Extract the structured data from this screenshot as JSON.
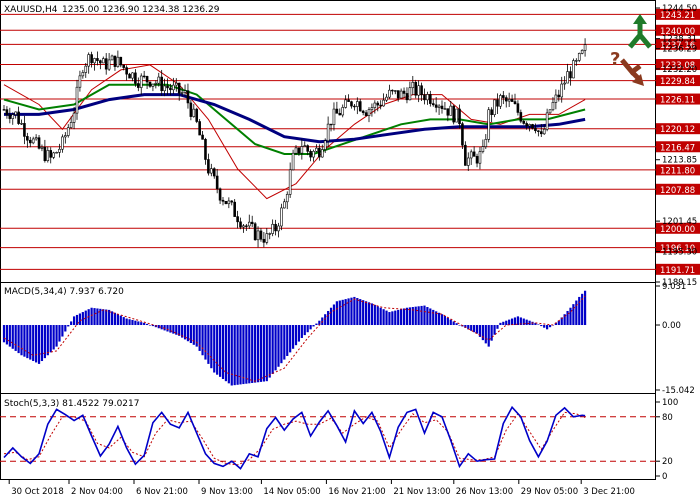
{
  "header": {
    "title": "XAUUSD,H4",
    "ohlc": "1235.00 1236.90 1234.38 1236.29"
  },
  "colors": {
    "candle": "#000000",
    "level_line": "#c00000",
    "level_tag_bg": "#c00000",
    "ma_fast": "#c00000",
    "ma_mid": "#008000",
    "ma_slow": "#00007f",
    "macd_bars": "#0000c8",
    "macd_signal": "#c00000",
    "stoch_main": "#0000c8",
    "stoch_signal": "#c00000",
    "stoch_levels": "#c00000",
    "arrow_up": "#1f7a2a",
    "arrow_down": "#8b3a1f",
    "question": "#8b3a1f"
  },
  "icons": [
    "arrow-up-icon",
    "arrow-down-icon",
    "question-mark-icon"
  ],
  "chart_data": [
    {
      "type": "candlestick",
      "panel": "price",
      "ylim": [
        1189.15,
        1244.5
      ],
      "levels": [
        1243.21,
        1240.0,
        1237.16,
        1233.08,
        1229.84,
        1226.11,
        1220.12,
        1216.47,
        1211.8,
        1207.88,
        1200.0,
        1196.1,
        1191.71
      ],
      "level_labels": [
        "1243.21",
        "1240.00",
        "1237.16",
        "1233.08",
        "1229.84",
        "1226.11",
        "1220.12",
        "1216.47",
        "1211.80",
        "1207.88",
        "1200.00",
        "1196.10",
        "1191.71"
      ],
      "axis_labels": [
        {
          "text": "1244.50",
          "value": 1244.5
        },
        {
          "text": "1238.31",
          "value": 1238.31
        },
        {
          "text": "1236.29",
          "value": 1236.29
        },
        {
          "text": "1232.20",
          "value": 1232.2
        },
        {
          "text": "1213.85",
          "value": 1213.85
        },
        {
          "text": "1201.45",
          "value": 1201.45
        },
        {
          "text": "1195.30",
          "value": 1195.3
        },
        {
          "text": "1189.15",
          "value": 1189.15
        }
      ],
      "close_path": [
        [
          0,
          1224
        ],
        [
          4,
          1223
        ],
        [
          8,
          1219
        ],
        [
          12,
          1216
        ],
        [
          16,
          1214
        ],
        [
          20,
          1217
        ],
        [
          24,
          1224
        ],
        [
          27,
          1233
        ],
        [
          30,
          1235
        ],
        [
          34,
          1233
        ],
        [
          38,
          1234
        ],
        [
          42,
          1232
        ],
        [
          46,
          1230
        ],
        [
          50,
          1230
        ],
        [
          54,
          1229
        ],
        [
          58,
          1228
        ],
        [
          62,
          1227
        ],
        [
          66,
          1221
        ],
        [
          70,
          1212
        ],
        [
          74,
          1207
        ],
        [
          78,
          1204
        ],
        [
          82,
          1201
        ],
        [
          86,
          1199
        ],
        [
          90,
          1198
        ],
        [
          93,
          1200
        ],
        [
          96,
          1205
        ],
        [
          99,
          1214
        ],
        [
          102,
          1217
        ],
        [
          105,
          1215
        ],
        [
          108,
          1216
        ],
        [
          112,
          1222
        ],
        [
          116,
          1224
        ],
        [
          120,
          1226
        ],
        [
          124,
          1224
        ],
        [
          128,
          1225
        ],
        [
          132,
          1227
        ],
        [
          136,
          1227
        ],
        [
          140,
          1228
        ],
        [
          144,
          1227
        ],
        [
          148,
          1226
        ],
        [
          152,
          1224
        ],
        [
          156,
          1222
        ],
        [
          158,
          1214
        ],
        [
          161,
          1214
        ],
        [
          164,
          1215
        ],
        [
          166,
          1223
        ],
        [
          170,
          1226
        ],
        [
          174,
          1225
        ],
        [
          178,
          1222
        ],
        [
          182,
          1221
        ],
        [
          184,
          1218
        ],
        [
          187,
          1224
        ],
        [
          190,
          1227
        ],
        [
          193,
          1231
        ],
        [
          196,
          1233
        ],
        [
          199,
          1236
        ]
      ],
      "ma_fast": [
        [
          0,
          1229
        ],
        [
          12,
          1225
        ],
        [
          20,
          1220
        ],
        [
          30,
          1228
        ],
        [
          40,
          1232
        ],
        [
          50,
          1233
        ],
        [
          60,
          1229
        ],
        [
          70,
          1222
        ],
        [
          80,
          1212
        ],
        [
          90,
          1206
        ],
        [
          100,
          1209
        ],
        [
          110,
          1216
        ],
        [
          120,
          1221
        ],
        [
          130,
          1225
        ],
        [
          140,
          1227
        ],
        [
          150,
          1227
        ],
        [
          160,
          1222
        ],
        [
          170,
          1221
        ],
        [
          180,
          1223
        ],
        [
          190,
          1223
        ],
        [
          199,
          1226
        ]
      ],
      "ma_mid": [
        [
          0,
          1226
        ],
        [
          12,
          1224
        ],
        [
          24,
          1225
        ],
        [
          36,
          1229
        ],
        [
          46,
          1229
        ],
        [
          56,
          1229
        ],
        [
          66,
          1227
        ],
        [
          76,
          1222
        ],
        [
          86,
          1217
        ],
        [
          96,
          1215
        ],
        [
          106,
          1215
        ],
        [
          116,
          1217
        ],
        [
          126,
          1219
        ],
        [
          136,
          1221
        ],
        [
          146,
          1222
        ],
        [
          156,
          1222
        ],
        [
          166,
          1221
        ],
        [
          176,
          1222
        ],
        [
          186,
          1222
        ],
        [
          199,
          1224
        ]
      ],
      "ma_slow": [
        [
          0,
          1223
        ],
        [
          12,
          1223
        ],
        [
          24,
          1224
        ],
        [
          36,
          1226
        ],
        [
          48,
          1227
        ],
        [
          60,
          1227
        ],
        [
          72,
          1225
        ],
        [
          84,
          1222
        ],
        [
          96,
          1218.5
        ],
        [
          108,
          1217.5
        ],
        [
          120,
          1218
        ],
        [
          132,
          1219
        ],
        [
          144,
          1220
        ],
        [
          156,
          1220.5
        ],
        [
          168,
          1220.5
        ],
        [
          180,
          1220.5
        ],
        [
          190,
          1221
        ],
        [
          199,
          1222
        ]
      ]
    },
    {
      "type": "bar",
      "panel": "macd",
      "title": "MACD(5,34,4) 7.937 6.720",
      "ylim": [
        -15.042,
        9.031
      ],
      "axis_labels": [
        {
          "text": "9.031",
          "value": 9.031
        },
        {
          "text": "0.00",
          "value": 0
        },
        {
          "text": "-15.042",
          "value": -15.042
        }
      ],
      "bars_path": [
        [
          0,
          -4
        ],
        [
          6,
          -7
        ],
        [
          12,
          -9
        ],
        [
          18,
          -5
        ],
        [
          24,
          2
        ],
        [
          30,
          4
        ],
        [
          36,
          3.5
        ],
        [
          42,
          1.5
        ],
        [
          48,
          0.5
        ],
        [
          54,
          -1
        ],
        [
          60,
          -2.5
        ],
        [
          66,
          -5
        ],
        [
          72,
          -11
        ],
        [
          78,
          -14
        ],
        [
          84,
          -13.5
        ],
        [
          90,
          -13
        ],
        [
          96,
          -8
        ],
        [
          102,
          -3
        ],
        [
          108,
          1
        ],
        [
          114,
          5.5
        ],
        [
          120,
          6.5
        ],
        [
          126,
          5
        ],
        [
          132,
          3
        ],
        [
          138,
          4
        ],
        [
          144,
          4.5
        ],
        [
          150,
          2.5
        ],
        [
          156,
          0
        ],
        [
          162,
          -2
        ],
        [
          166,
          -5
        ],
        [
          170,
          0.5
        ],
        [
          176,
          2
        ],
        [
          182,
          0.5
        ],
        [
          186,
          -1
        ],
        [
          190,
          1
        ],
        [
          194,
          4
        ],
        [
          197,
          6.5
        ],
        [
          199,
          7.937
        ]
      ],
      "signal_path": [
        [
          0,
          -3
        ],
        [
          10,
          -7
        ],
        [
          18,
          -6
        ],
        [
          26,
          1
        ],
        [
          34,
          3.5
        ],
        [
          44,
          1.5
        ],
        [
          56,
          -1
        ],
        [
          66,
          -4
        ],
        [
          76,
          -11
        ],
        [
          86,
          -13
        ],
        [
          96,
          -10
        ],
        [
          104,
          -3
        ],
        [
          112,
          3
        ],
        [
          120,
          6
        ],
        [
          130,
          4
        ],
        [
          140,
          3.5
        ],
        [
          150,
          2.5
        ],
        [
          158,
          -0.5
        ],
        [
          166,
          -3.5
        ],
        [
          172,
          0
        ],
        [
          182,
          0.5
        ],
        [
          188,
          0
        ],
        [
          194,
          3
        ],
        [
          199,
          6.72
        ]
      ]
    },
    {
      "type": "line",
      "panel": "stochastic",
      "title": "Stoch(5,3,3) 81.4522 79.0217",
      "ylim": [
        0,
        100
      ],
      "levels": [
        80,
        20
      ],
      "axis_labels": [
        {
          "text": "100",
          "value": 100
        },
        {
          "text": "80",
          "value": 80
        },
        {
          "text": "20",
          "value": 20
        },
        {
          "text": "0",
          "value": 0
        }
      ],
      "main": [
        [
          0,
          25
        ],
        [
          3,
          38
        ],
        [
          6,
          26
        ],
        [
          9,
          17
        ],
        [
          12,
          30
        ],
        [
          15,
          70
        ],
        [
          18,
          90
        ],
        [
          21,
          83
        ],
        [
          24,
          75
        ],
        [
          27,
          82
        ],
        [
          30,
          54
        ],
        [
          33,
          27
        ],
        [
          36,
          43
        ],
        [
          39,
          67
        ],
        [
          42,
          38
        ],
        [
          45,
          16
        ],
        [
          48,
          28
        ],
        [
          51,
          72
        ],
        [
          54,
          86
        ],
        [
          57,
          70
        ],
        [
          60,
          65
        ],
        [
          63,
          86
        ],
        [
          66,
          58
        ],
        [
          69,
          30
        ],
        [
          72,
          17
        ],
        [
          75,
          13
        ],
        [
          78,
          20
        ],
        [
          81,
          10
        ],
        [
          84,
          30
        ],
        [
          87,
          26
        ],
        [
          90,
          64
        ],
        [
          93,
          79
        ],
        [
          96,
          62
        ],
        [
          99,
          77
        ],
        [
          102,
          86
        ],
        [
          105,
          54
        ],
        [
          108,
          73
        ],
        [
          111,
          88
        ],
        [
          114,
          68
        ],
        [
          117,
          46
        ],
        [
          120,
          88
        ],
        [
          123,
          71
        ],
        [
          126,
          86
        ],
        [
          129,
          60
        ],
        [
          132,
          25
        ],
        [
          135,
          66
        ],
        [
          138,
          86
        ],
        [
          141,
          90
        ],
        [
          144,
          58
        ],
        [
          147,
          86
        ],
        [
          150,
          80
        ],
        [
          153,
          48
        ],
        [
          156,
          13
        ],
        [
          159,
          30
        ],
        [
          162,
          20
        ],
        [
          165,
          22
        ],
        [
          168,
          23
        ],
        [
          171,
          71
        ],
        [
          174,
          93
        ],
        [
          177,
          80
        ],
        [
          180,
          48
        ],
        [
          183,
          26
        ],
        [
          186,
          47
        ],
        [
          189,
          82
        ],
        [
          192,
          92
        ],
        [
          195,
          80
        ],
        [
          198,
          82
        ],
        [
          199,
          81.45
        ]
      ],
      "signal": [
        [
          0,
          30
        ],
        [
          4,
          32
        ],
        [
          8,
          22
        ],
        [
          12,
          26
        ],
        [
          16,
          55
        ],
        [
          20,
          80
        ],
        [
          24,
          80
        ],
        [
          28,
          74
        ],
        [
          32,
          44
        ],
        [
          36,
          38
        ],
        [
          40,
          52
        ],
        [
          44,
          32
        ],
        [
          48,
          26
        ],
        [
          52,
          58
        ],
        [
          56,
          76
        ],
        [
          60,
          72
        ],
        [
          64,
          74
        ],
        [
          68,
          50
        ],
        [
          72,
          24
        ],
        [
          76,
          17
        ],
        [
          80,
          15
        ],
        [
          84,
          22
        ],
        [
          88,
          38
        ],
        [
          92,
          63
        ],
        [
          96,
          70
        ],
        [
          100,
          74
        ],
        [
          104,
          70
        ],
        [
          108,
          70
        ],
        [
          112,
          78
        ],
        [
          116,
          58
        ],
        [
          120,
          70
        ],
        [
          124,
          80
        ],
        [
          128,
          74
        ],
        [
          132,
          38
        ],
        [
          136,
          62
        ],
        [
          140,
          84
        ],
        [
          144,
          72
        ],
        [
          148,
          76
        ],
        [
          152,
          60
        ],
        [
          156,
          24
        ],
        [
          160,
          22
        ],
        [
          164,
          22
        ],
        [
          168,
          26
        ],
        [
          172,
          62
        ],
        [
          176,
          84
        ],
        [
          180,
          60
        ],
        [
          184,
          36
        ],
        [
          188,
          62
        ],
        [
          192,
          86
        ],
        [
          196,
          84
        ],
        [
          199,
          79.02
        ]
      ]
    }
  ],
  "x_axis": {
    "bar_count": 200,
    "labels": [
      {
        "text": "30 Oct 2018",
        "bar": 2
      },
      {
        "text": "2 Nov 04:00",
        "bar": 25
      },
      {
        "text": "6 Nov 21:00",
        "bar": 50
      },
      {
        "text": "9 Nov 13:00",
        "bar": 75
      },
      {
        "text": "14 Nov 05:00",
        "bar": 99
      },
      {
        "text": "16 Nov 21:00",
        "bar": 124
      },
      {
        "text": "21 Nov 13:00",
        "bar": 149
      },
      {
        "text": "26 Nov 13:00",
        "bar": 173
      },
      {
        "text": "29 Nov 05:00",
        "bar": 198
      },
      {
        "text": "3 Dec 21:00",
        "bar": 222
      }
    ]
  }
}
